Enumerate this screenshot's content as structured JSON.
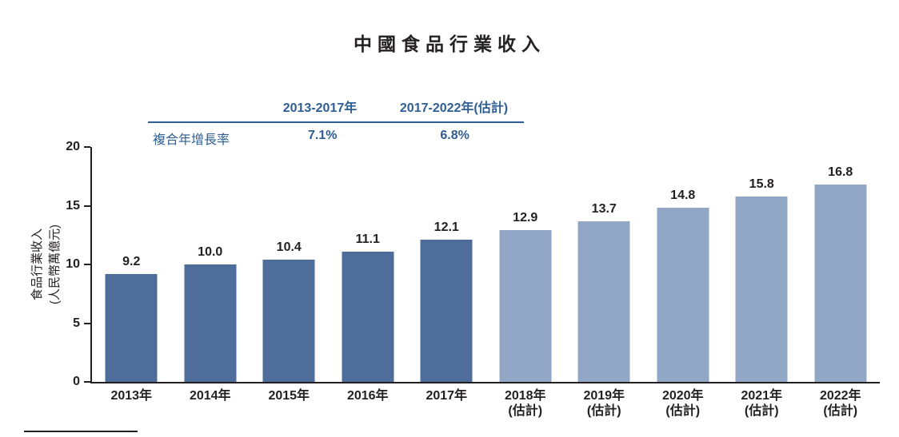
{
  "title": "中國食品行業收入",
  "cagr_table": {
    "row_label": "複合年增長率",
    "columns": [
      {
        "header": "2013-2017年",
        "value": "7.1%"
      },
      {
        "header": "2017-2022年(估計)",
        "value": "6.8%"
      }
    ]
  },
  "chart_data": {
    "type": "bar",
    "title": "中國食品行業收入",
    "ylabel_line1": "食品行業收入",
    "ylabel_line2": "(人民幣萬億元)",
    "ylim": [
      0,
      20
    ],
    "y_ticks": [
      0,
      5,
      10,
      15,
      20
    ],
    "grid": false,
    "categories": [
      "2013年",
      "2014年",
      "2015年",
      "2016年",
      "2017年",
      "2018年",
      "2019年",
      "2020年",
      "2021年",
      "2022年"
    ],
    "sub_labels": [
      "",
      "",
      "",
      "",
      "",
      "(估計)",
      "(估計)",
      "(估計)",
      "(估計)",
      "(估計)"
    ],
    "values": [
      9.2,
      10.0,
      10.4,
      11.1,
      12.1,
      12.9,
      13.7,
      14.8,
      15.8,
      16.8
    ],
    "value_labels": [
      "9.2",
      "10.0",
      "10.4",
      "11.1",
      "12.1",
      "12.9",
      "13.7",
      "14.8",
      "15.8",
      "16.8"
    ],
    "estimate_flags": [
      false,
      false,
      false,
      false,
      false,
      true,
      true,
      true,
      true,
      true
    ],
    "colors": {
      "actual_bar": "#4e6d9b",
      "estimate_bar": "#92a6c6",
      "table_accent": "#2e5e93",
      "text": "#231f20"
    }
  }
}
